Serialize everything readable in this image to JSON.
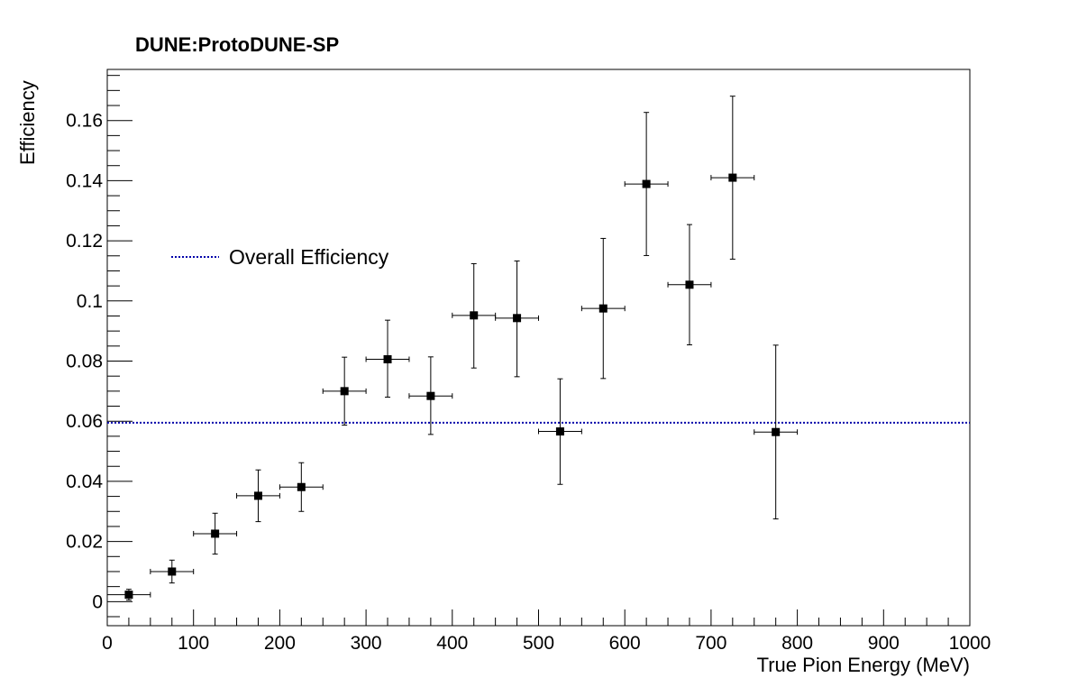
{
  "chart_data": {
    "type": "scatter",
    "title": "DUNE:ProtoDUNE-SP",
    "xlabel": "True Pion Energy (MeV)",
    "ylabel": "Efficiency",
    "xlim": [
      0,
      1000
    ],
    "ylim": [
      -0.008,
      0.177
    ],
    "x_ticks": [
      "0",
      "100",
      "200",
      "300",
      "400",
      "500",
      "600",
      "700",
      "800",
      "900",
      "1000"
    ],
    "y_ticks": [
      "0",
      "0.02",
      "0.04",
      "0.06",
      "0.08",
      "0.1",
      "0.12",
      "0.14",
      "0.16"
    ],
    "grid": false,
    "legend_position": "upper-left",
    "series": [
      {
        "marker": "square",
        "color": "#000000",
        "x": [
          25,
          75,
          125,
          175,
          225,
          275,
          325,
          375,
          425,
          475,
          525,
          575,
          625,
          675,
          725,
          775
        ],
        "x_err": [
          25,
          25,
          25,
          25,
          25,
          25,
          25,
          25,
          25,
          25,
          25,
          25,
          25,
          25,
          25,
          25
        ],
        "y": [
          0.0023,
          0.01,
          0.0226,
          0.0352,
          0.0381,
          0.07,
          0.0806,
          0.0684,
          0.0952,
          0.0943,
          0.0566,
          0.0975,
          0.1389,
          0.1054,
          0.141,
          0.0564
        ],
        "y_err_up": [
          0.0018,
          0.0038,
          0.0068,
          0.0086,
          0.0081,
          0.0113,
          0.013,
          0.013,
          0.0172,
          0.019,
          0.0175,
          0.0233,
          0.0238,
          0.02,
          0.0271,
          0.0289
        ],
        "y_err_down": [
          0.0018,
          0.0038,
          0.0068,
          0.0086,
          0.0081,
          0.0113,
          0.0126,
          0.0128,
          0.0175,
          0.0195,
          0.0176,
          0.0233,
          0.0238,
          0.02,
          0.0271,
          0.0289
        ]
      }
    ],
    "reference_line": {
      "label": "Overall Efficiency",
      "y": 0.0595,
      "color": "#0000aa",
      "style": "dotted"
    }
  }
}
